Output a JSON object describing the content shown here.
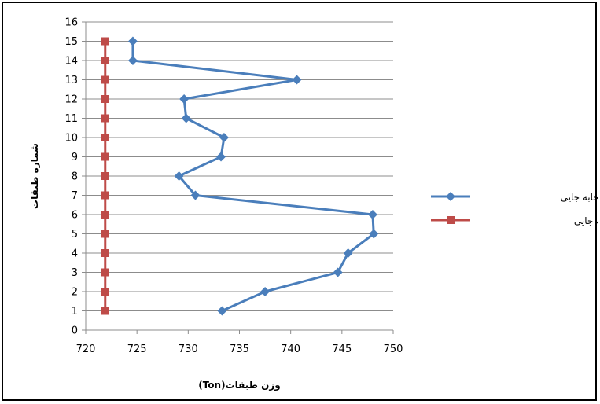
{
  "chart_data": {
    "type": "line",
    "title": "",
    "xlabel": "وزن طبقات(Ton)",
    "ylabel": "شماره طبقات",
    "xlim": [
      720,
      750
    ],
    "ylim": [
      0,
      16
    ],
    "x_ticks": [
      720,
      725,
      730,
      735,
      740,
      745,
      750
    ],
    "y_ticks": [
      0,
      1,
      2,
      3,
      4,
      5,
      6,
      7,
      8,
      9,
      10,
      11,
      12,
      13,
      14,
      15,
      16
    ],
    "grid": "horizontal",
    "legend_position": "right",
    "series": [
      {
        "name": "وزن قاب با جابه جایی",
        "color": "#4a7ebb",
        "marker": "diamond",
        "points": [
          {
            "x": 733.3,
            "y": 1
          },
          {
            "x": 737.5,
            "y": 2
          },
          {
            "x": 744.6,
            "y": 3
          },
          {
            "x": 745.6,
            "y": 4
          },
          {
            "x": 748.1,
            "y": 5
          },
          {
            "x": 748.0,
            "y": 6
          },
          {
            "x": 730.7,
            "y": 7
          },
          {
            "x": 729.1,
            "y": 8
          },
          {
            "x": 733.2,
            "y": 9
          },
          {
            "x": 733.5,
            "y": 10
          },
          {
            "x": 729.8,
            "y": 11
          },
          {
            "x": 729.6,
            "y": 12
          },
          {
            "x": 740.6,
            "y": 13
          },
          {
            "x": 724.6,
            "y": 14
          },
          {
            "x": 724.6,
            "y": 15
          }
        ]
      },
      {
        "name": "وزن قاب بدون جابه جایی",
        "color": "#be4b48",
        "marker": "square",
        "points": [
          {
            "x": 721.9,
            "y": 1
          },
          {
            "x": 721.9,
            "y": 2
          },
          {
            "x": 721.9,
            "y": 3
          },
          {
            "x": 721.9,
            "y": 4
          },
          {
            "x": 721.9,
            "y": 5
          },
          {
            "x": 721.9,
            "y": 6
          },
          {
            "x": 721.9,
            "y": 7
          },
          {
            "x": 721.9,
            "y": 8
          },
          {
            "x": 721.9,
            "y": 9
          },
          {
            "x": 721.9,
            "y": 10
          },
          {
            "x": 721.9,
            "y": 11
          },
          {
            "x": 721.9,
            "y": 12
          },
          {
            "x": 721.9,
            "y": 13
          },
          {
            "x": 721.9,
            "y": 14
          },
          {
            "x": 721.9,
            "y": 15
          }
        ]
      }
    ]
  }
}
